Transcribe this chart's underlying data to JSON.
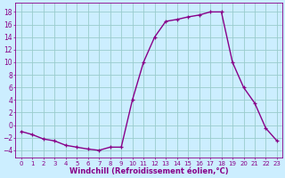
{
  "x": [
    0,
    1,
    2,
    3,
    4,
    5,
    6,
    7,
    8,
    9,
    10,
    11,
    12,
    13,
    14,
    15,
    16,
    17,
    18,
    19,
    20,
    21,
    22,
    23
  ],
  "y": [
    -1,
    -1.5,
    -2.2,
    -2.5,
    -3.2,
    -3.5,
    -3.8,
    -4.0,
    -3.5,
    -3.5,
    4.0,
    10.0,
    14.0,
    16.5,
    16.8,
    17.2,
    17.5,
    18.0,
    18.0,
    10.0,
    6.0,
    3.5,
    -0.5,
    -2.5
  ],
  "line_color": "#880088",
  "marker": "+",
  "bg_color": "#cceeff",
  "grid_color": "#99cccc",
  "xlabel": "Windchill (Refroidissement éolien,°C)",
  "xlabel_color": "#880088",
  "yticks": [
    -4,
    -2,
    0,
    2,
    4,
    6,
    8,
    10,
    12,
    14,
    16,
    18
  ],
  "xticks": [
    0,
    1,
    2,
    3,
    4,
    5,
    6,
    7,
    8,
    9,
    10,
    11,
    12,
    13,
    14,
    15,
    16,
    17,
    18,
    19,
    20,
    21,
    22,
    23
  ],
  "ylim": [
    -5.2,
    19.5
  ],
  "xlim": [
    -0.5,
    23.5
  ],
  "tick_label_color": "#880088",
  "linewidth": 1.0,
  "markersize": 3.5,
  "xlabel_fontsize": 6.0,
  "tick_fontsize_x": 5.0,
  "tick_fontsize_y": 5.5
}
